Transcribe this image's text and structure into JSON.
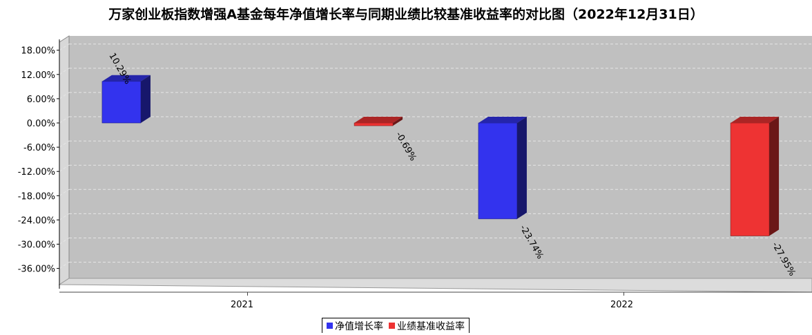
{
  "chart_data": {
    "type": "bar",
    "title": "万家创业板指数增强A基金每年净值增长率与同期业绩比较基准收益率的对比图（2022年12月31日）",
    "categories": [
      "2021",
      "2022"
    ],
    "series": [
      {
        "name": "净值增长率",
        "values": [
          10.29,
          -23.74
        ],
        "labels": [
          "10.29%",
          "-23.74%"
        ],
        "color": "#3333ee"
      },
      {
        "name": "业绩基准收益率",
        "values": [
          -0.69,
          -27.95
        ],
        "labels": [
          "-0.69%",
          "-27.95%"
        ],
        "color": "#ee3333"
      }
    ],
    "yticks": [
      "18.00%",
      "12.00%",
      "6.00%",
      "0.00%",
      "-6.00%",
      "-12.00%",
      "-18.00%",
      "-24.00%",
      "-30.00%",
      "-36.00%"
    ],
    "ytick_values": [
      18,
      12,
      6,
      0,
      -6,
      -12,
      -18,
      -24,
      -30,
      -36
    ],
    "ylim": [
      -40,
      20
    ],
    "grid": true,
    "legend_position": "bottom-center",
    "three_d": true,
    "colors": {
      "plot_bg": "#c0c0c0",
      "grid": "#e6e6e6",
      "wall": "#d8d8d8"
    }
  }
}
